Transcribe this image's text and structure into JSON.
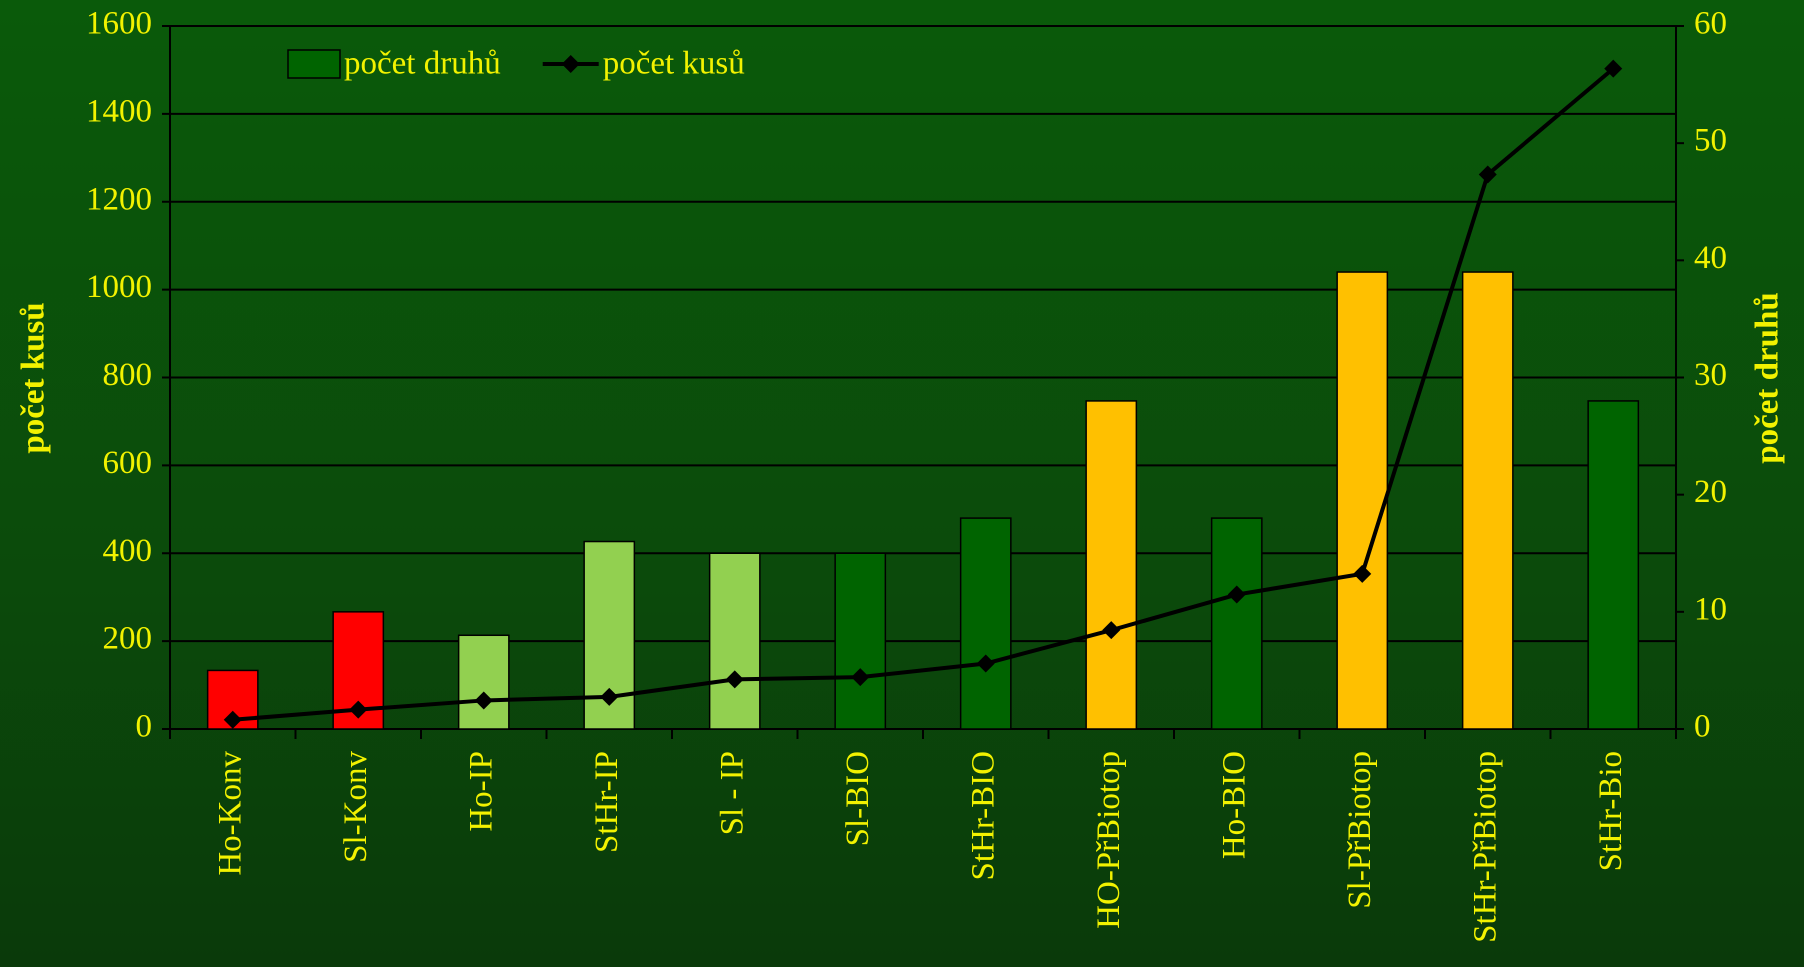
{
  "chart_data": {
    "type": "bar-line",
    "categories": [
      "Ho-Konv",
      "Sl-Konv",
      "Ho-IP",
      "StHr-IP",
      "Sl - IP",
      "Sl-BIO",
      "StHr-BIO",
      "HO-PřBiotop",
      "Ho-BIO",
      "Sl-PřBiotop",
      "StHr-PřBiotop",
      "StHr-Bio"
    ],
    "series": [
      {
        "name": "počet druhů",
        "type": "bar",
        "axis": "y2",
        "color": "#006400",
        "colors": [
          "#ff0000",
          "#ff0000",
          "#92d050",
          "#92d050",
          "#92d050",
          "#006400",
          "#006400",
          "#ffc000",
          "#006400",
          "#ffc000",
          "#ffc000",
          "#006400"
        ],
        "values": [
          5,
          10,
          8,
          16,
          15,
          15,
          18,
          28,
          18,
          39,
          39,
          28
        ]
      },
      {
        "name": "počet kusů",
        "type": "line",
        "axis": "y",
        "color": "#000000",
        "values": [
          21,
          44,
          65,
          73,
          113,
          118,
          149,
          225,
          306,
          353,
          1262,
          1503
        ]
      }
    ],
    "ylabel": "počet kusů",
    "y2label": "počet druhů",
    "ylim": [
      0,
      1600
    ],
    "yticks": [
      0,
      200,
      400,
      600,
      800,
      1000,
      1200,
      1400,
      1600
    ],
    "y2lim": [
      0,
      60
    ],
    "y2ticks": [
      0,
      10,
      20,
      30,
      40,
      50,
      60
    ],
    "grid": true,
    "legend": "top-left"
  }
}
